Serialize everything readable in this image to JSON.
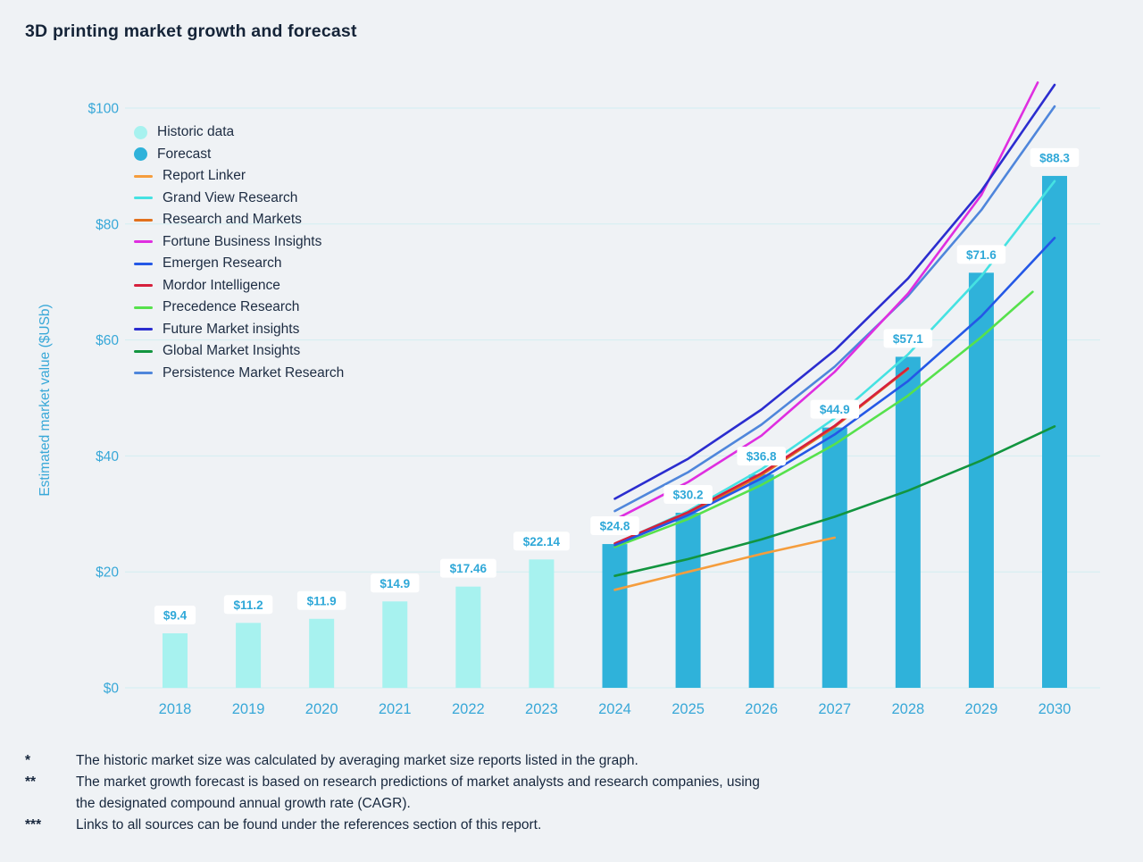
{
  "title": "3D printing market growth and forecast",
  "legend": {
    "items": [
      {
        "label": "Historic data",
        "swatch": "circle",
        "color": "#a7f2ef"
      },
      {
        "label": "Forecast",
        "swatch": "circle",
        "color": "#2fb2da"
      },
      {
        "label": "Report Linker",
        "swatch": "line",
        "color": "#f59d3d"
      },
      {
        "label": "Grand View Research",
        "swatch": "line",
        "color": "#45e2e2"
      },
      {
        "label": "Research and Markets",
        "swatch": "line",
        "color": "#e2711d"
      },
      {
        "label": "Fortune Business Insights",
        "swatch": "line",
        "color": "#df2ee0"
      },
      {
        "label": "Emergen Research",
        "swatch": "line",
        "color": "#2458e6"
      },
      {
        "label": "Mordor Intelligence",
        "swatch": "line",
        "color": "#d6203c"
      },
      {
        "label": "Precedence Research",
        "swatch": "line",
        "color": "#56e14c"
      },
      {
        "label": "Future Market insights",
        "swatch": "line",
        "color": "#2b2dcf"
      },
      {
        "label": "Global Market Insights",
        "swatch": "line",
        "color": "#12953f"
      },
      {
        "label": "Persistence Market Research",
        "swatch": "line",
        "color": "#4f86db"
      }
    ]
  },
  "chart_data": {
    "type": "bar+line",
    "title": "3D printing market growth and forecast",
    "ylabel": "Estimated market value ($USb)",
    "xlabel": "",
    "categories": [
      "2018",
      "2019",
      "2020",
      "2021",
      "2022",
      "2023",
      "2024",
      "2025",
      "2026",
      "2027",
      "2028",
      "2029",
      "2030"
    ],
    "ylim": [
      0,
      107
    ],
    "grid": "horizontal",
    "legend_position": "upper-left",
    "yticks": [
      {
        "value": 0,
        "label": "$0"
      },
      {
        "value": 20,
        "label": "$20"
      },
      {
        "value": 40,
        "label": "$40"
      },
      {
        "value": 60,
        "label": "$60"
      },
      {
        "value": 80,
        "label": "$80"
      },
      {
        "value": 100,
        "label": "$100"
      }
    ],
    "bar_colors": {
      "historic": "#a7f2ef",
      "forecast": "#2fb2da"
    },
    "bars": [
      {
        "year": "2018",
        "value": 9.4,
        "label": "$9.4",
        "type": "historic"
      },
      {
        "year": "2019",
        "value": 11.2,
        "label": "$11.2",
        "type": "historic"
      },
      {
        "year": "2020",
        "value": 11.9,
        "label": "$11.9",
        "type": "historic"
      },
      {
        "year": "2021",
        "value": 14.9,
        "label": "$14.9",
        "type": "historic"
      },
      {
        "year": "2022",
        "value": 17.46,
        "label": "$17.46",
        "type": "historic"
      },
      {
        "year": "2023",
        "value": 22.14,
        "label": "$22.14",
        "type": "historic"
      },
      {
        "year": "2024",
        "value": 24.8,
        "label": "$24.8",
        "type": "forecast"
      },
      {
        "year": "2025",
        "value": 30.2,
        "label": "$30.2",
        "type": "forecast"
      },
      {
        "year": "2026",
        "value": 36.8,
        "label": "$36.8",
        "type": "forecast"
      },
      {
        "year": "2027",
        "value": 44.9,
        "label": "$44.9",
        "type": "forecast"
      },
      {
        "year": "2028",
        "value": 57.1,
        "label": "$57.1",
        "type": "forecast"
      },
      {
        "year": "2029",
        "value": 71.6,
        "label": "$71.6",
        "type": "forecast"
      },
      {
        "year": "2030",
        "value": 88.3,
        "label": "$88.3",
        "type": "forecast"
      }
    ],
    "series": [
      {
        "name": "Research and Markets",
        "color": "#e2711d",
        "x": [
          2024,
          2025,
          2026,
          2027,
          2028
        ],
        "values": [
          24.8,
          30.0,
          36.7,
          45.0,
          55.0
        ]
      },
      {
        "name": "Report Linker",
        "color": "#f59d3d",
        "x": [
          2024,
          2025,
          2026,
          2027
        ],
        "values": [
          16.9,
          20.0,
          23.1,
          25.9
        ]
      },
      {
        "name": "Global Market Insights",
        "color": "#12953f",
        "x": [
          2024,
          2025,
          2026,
          2027,
          2028,
          2029,
          2030
        ],
        "values": [
          19.3,
          22.2,
          25.6,
          29.5,
          34.0,
          39.2,
          45.1
        ]
      },
      {
        "name": "Precedence Research",
        "color": "#56e14c",
        "x": [
          2024,
          2025,
          2026,
          2027,
          2028,
          2029,
          2029.7
        ],
        "values": [
          24.3,
          29.1,
          35.0,
          42.0,
          50.4,
          60.5,
          68.3
        ]
      },
      {
        "name": "Grand View Research",
        "color": "#45e2e2",
        "x": [
          2024,
          2025,
          2026,
          2027,
          2028,
          2029,
          2030
        ],
        "values": [
          24.8,
          30.5,
          37.7,
          46.5,
          57.5,
          71.0,
          87.4
        ]
      },
      {
        "name": "Mordor Intelligence",
        "color": "#d6203c",
        "x": [
          2024,
          2025,
          2026,
          2027,
          2028
        ],
        "values": [
          24.9,
          30.3,
          37.0,
          45.2,
          55.1
        ]
      },
      {
        "name": "Emergen Research",
        "color": "#2458e6",
        "x": [
          2024,
          2025,
          2026,
          2027,
          2028,
          2029,
          2030
        ],
        "values": [
          24.6,
          29.8,
          36.1,
          43.7,
          52.9,
          64.1,
          77.6
        ]
      },
      {
        "name": "Persistence Market Research",
        "color": "#4f86db",
        "x": [
          2024,
          2025,
          2026,
          2027,
          2028,
          2029,
          2030
        ],
        "values": [
          30.5,
          37.2,
          45.4,
          55.4,
          67.6,
          82.4,
          100.3
        ]
      },
      {
        "name": "Fortune Business Insights",
        "color": "#df2ee0",
        "x": [
          2024,
          2025,
          2026,
          2027,
          2028,
          2029,
          2029.77
        ],
        "values": [
          29.0,
          35.5,
          43.5,
          54.5,
          68.0,
          85.0,
          104.4
        ]
      },
      {
        "name": "Future Market insights",
        "color": "#2b2dcf",
        "x": [
          2024,
          2025,
          2026,
          2027,
          2028,
          2029,
          2030
        ],
        "values": [
          32.6,
          39.5,
          48.0,
          58.2,
          70.6,
          85.7,
          104.0
        ]
      }
    ],
    "axis_text_color": "#38a8d8",
    "gridline_color": "#d2eef2",
    "bar_label_text_color": "#2fa8d8",
    "bar_label_bg_color": "#ffffff"
  },
  "footnotes": [
    {
      "marker": "*",
      "text": "The historic market size was calculated by averaging market size reports listed in the graph."
    },
    {
      "marker": "**",
      "text": "The market growth forecast is based on research predictions of market analysts and research companies, using the designated compound annual growth rate (CAGR)."
    },
    {
      "marker": "***",
      "text": "Links to all sources can be found under the references section of this report."
    }
  ]
}
